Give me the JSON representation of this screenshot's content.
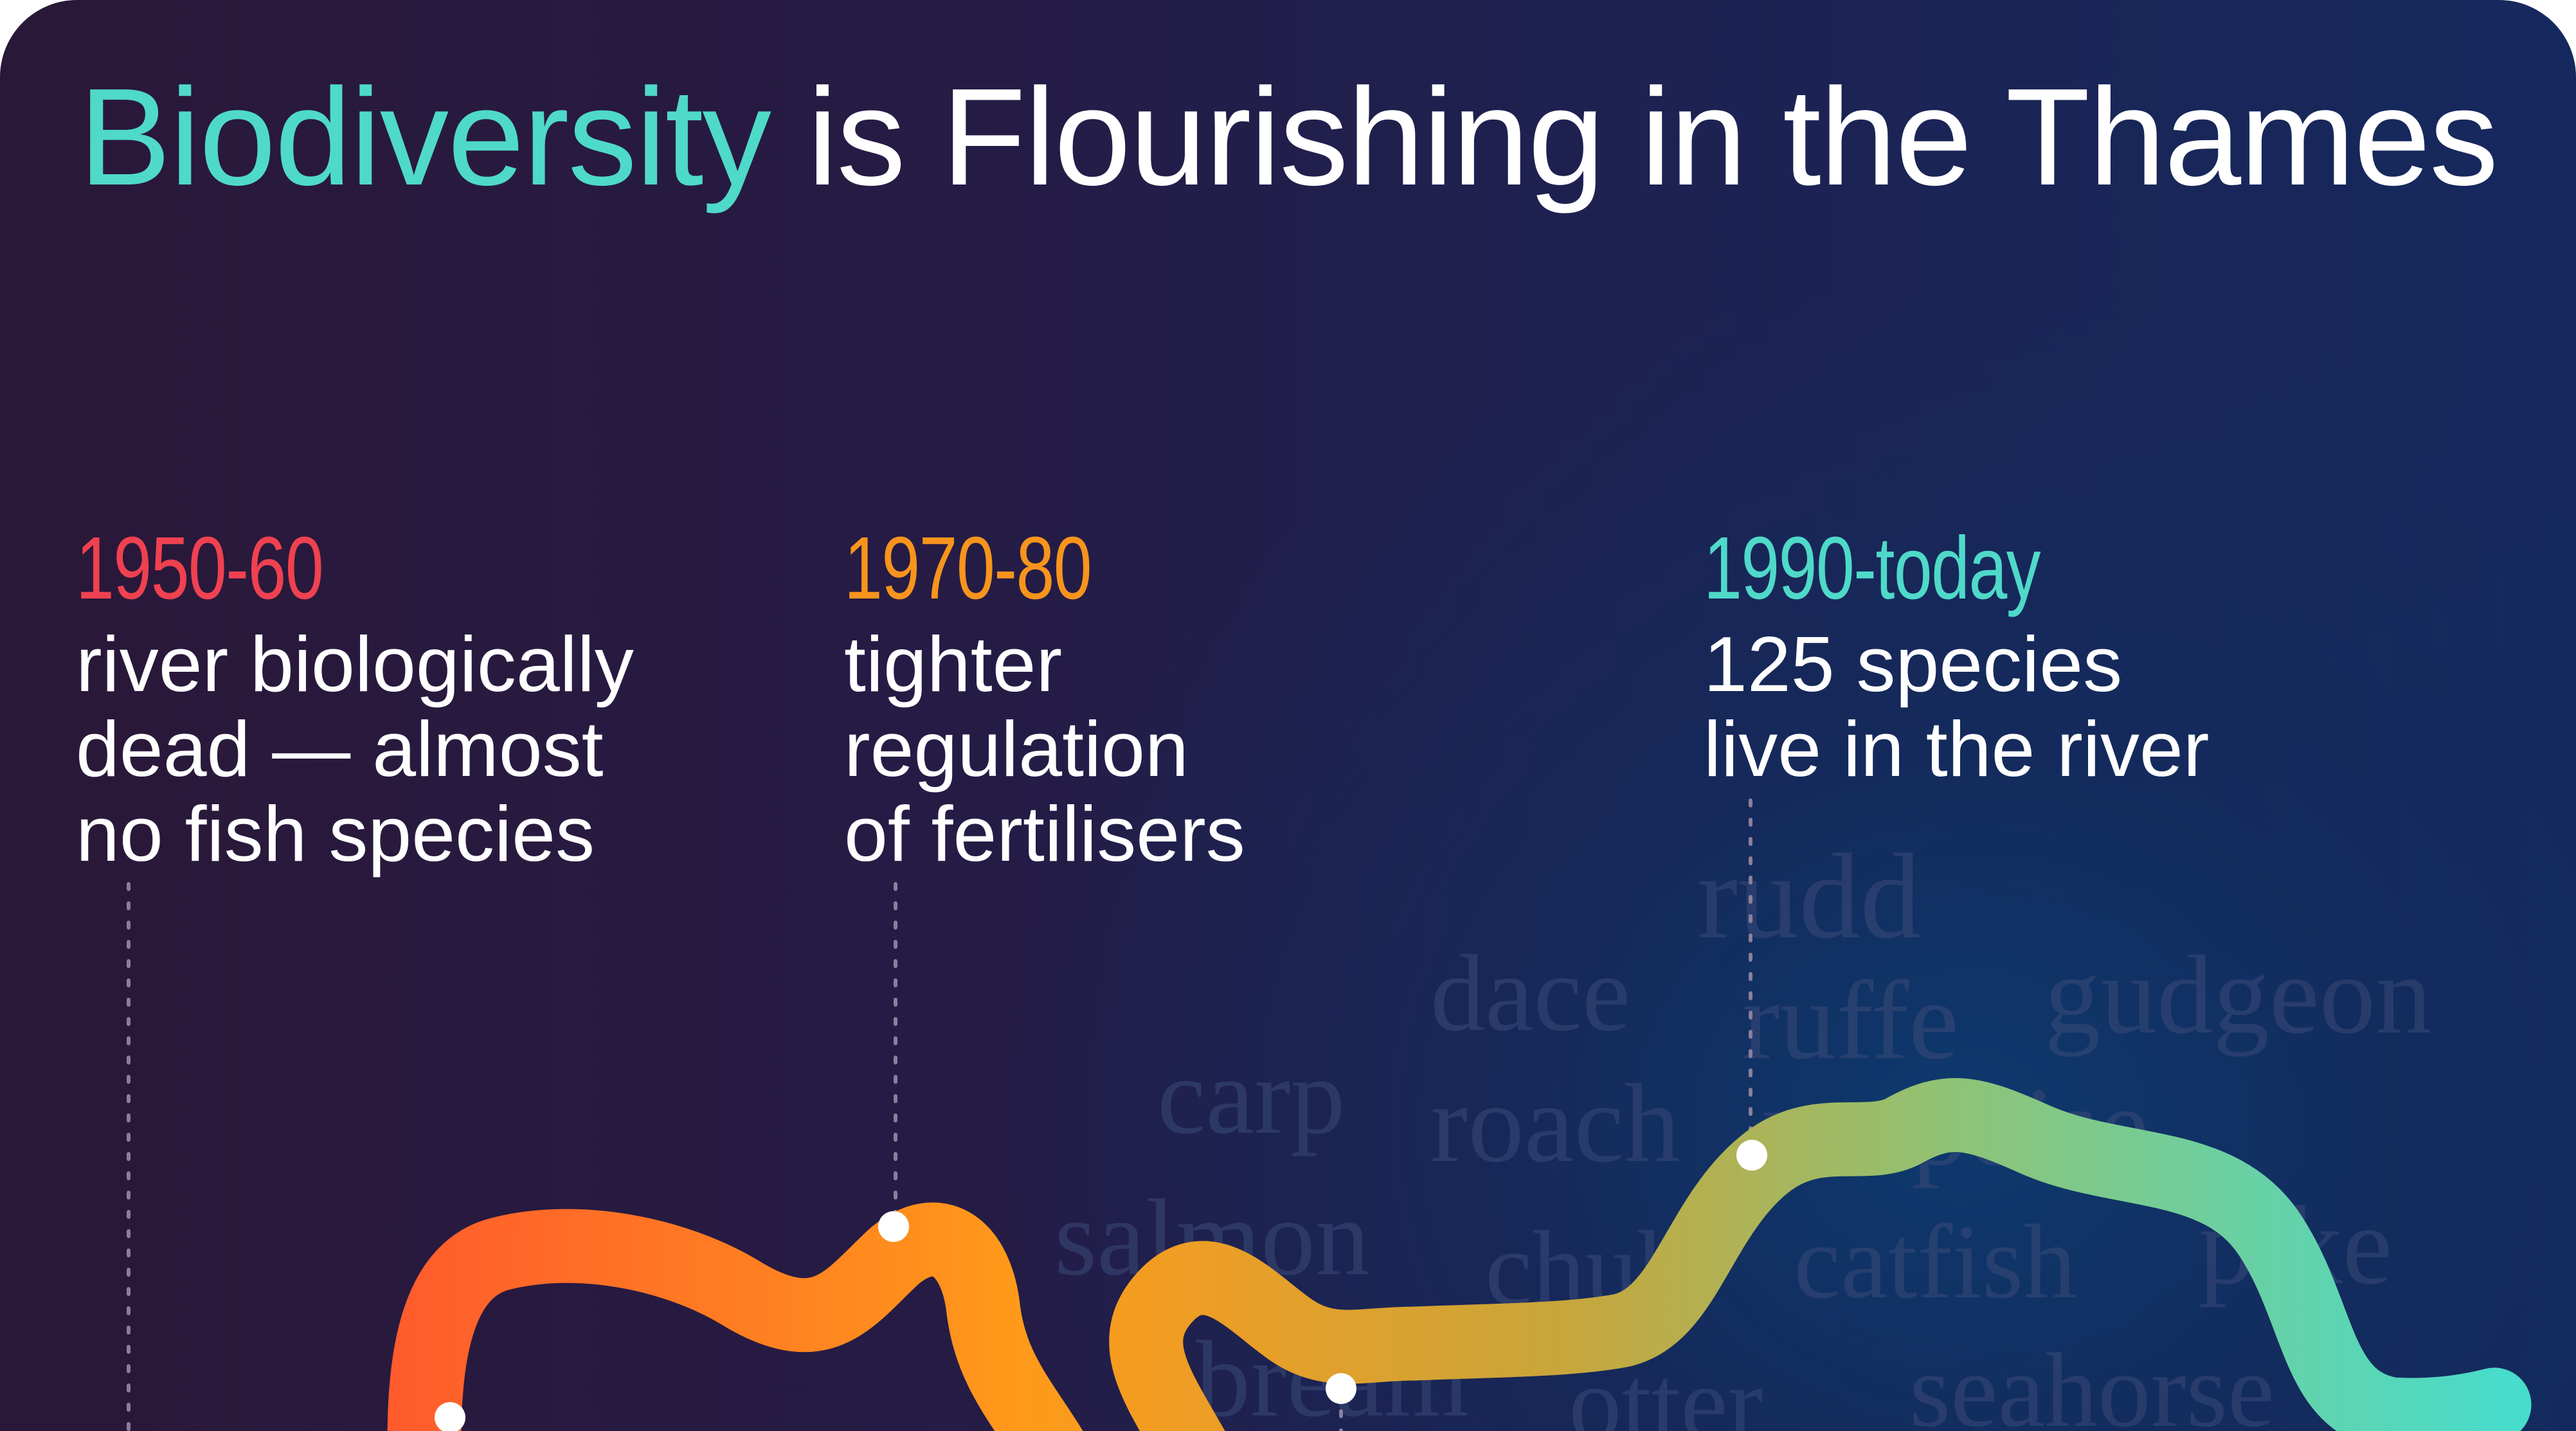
{
  "title": {
    "highlight": "Biodiversity",
    "rest": " is Flourishing in the Thames"
  },
  "eras": [
    {
      "years": "1950-60",
      "color": "#ef4150",
      "description": "river biologically\ndead — almost\nno fish species"
    },
    {
      "years": "1970-80",
      "color": "#f7941d",
      "description": "tighter\nregulation\nof fertilisers"
    },
    {
      "years": "1990-today",
      "color": "#4fd9c9",
      "description": "125 species\nlive in the river"
    }
  ],
  "species_words": [
    "rudd",
    "dace",
    "ruffe",
    "gudgeon",
    "carp",
    "roach",
    "porpoise",
    "salmon",
    "chub",
    "catfish",
    "pike",
    "bream",
    "otter",
    "seahorse"
  ],
  "river_gradient": [
    "#ff5a2c",
    "#ff9a1a",
    "#c9a53a",
    "#8cc47a",
    "#47dccb"
  ]
}
